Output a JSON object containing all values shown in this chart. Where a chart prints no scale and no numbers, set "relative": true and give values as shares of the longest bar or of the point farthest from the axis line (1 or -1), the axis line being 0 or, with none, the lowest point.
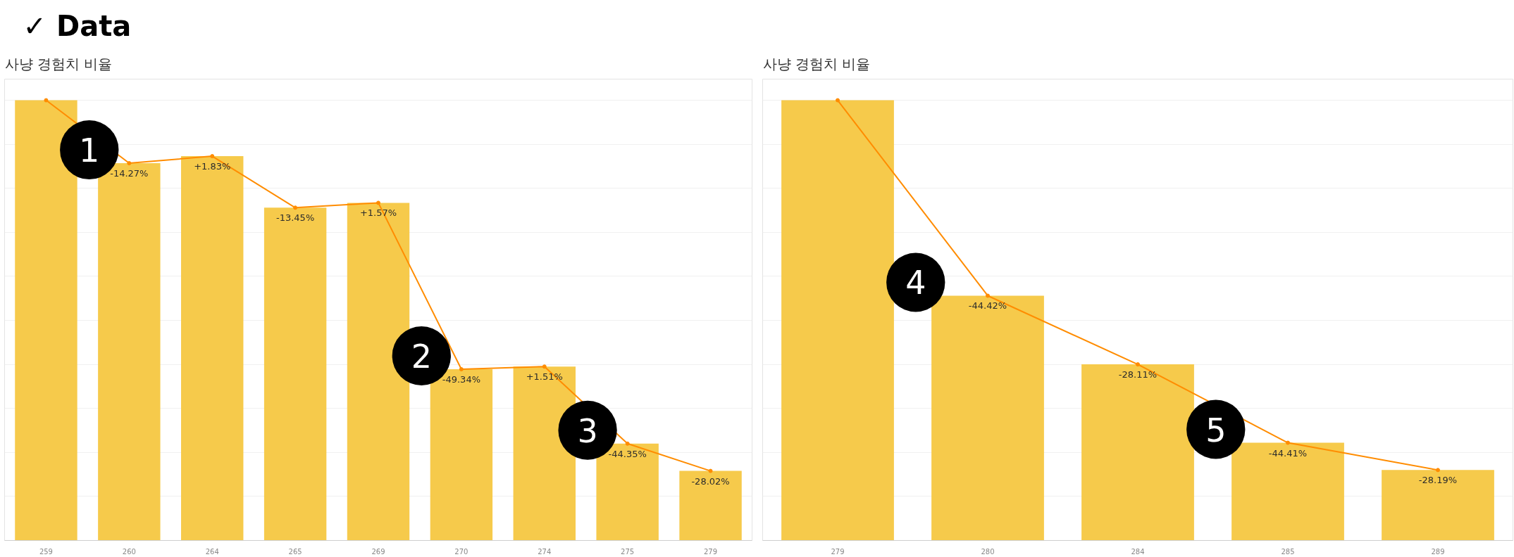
{
  "chart_data": [
    {
      "type": "bar",
      "title": "✓ Data",
      "subtitle": "사냥 경험치 비율",
      "categories": [
        "259",
        "260",
        "264",
        "265",
        "269",
        "270",
        "274",
        "275",
        "279"
      ],
      "relative": true,
      "grid": "y",
      "series": [
        {
          "color": "#f6ca4b",
          "values": [
            1,
            0.857,
            0.873,
            0.756,
            0.767,
            0.389,
            0.395,
            0.22,
            0.158
          ]
        },
        {
          "type": "line",
          "color": "#ff8c00",
          "marker": "circle",
          "values": [
            1,
            0.857,
            0.873,
            0.756,
            0.767,
            0.389,
            0.395,
            0.22,
            0.158
          ]
        }
      ],
      "annotations": [
        {
          "text": "-14.27%",
          "x": "260",
          "y": 0.857
        },
        {
          "text": "+1.83%",
          "x": "264",
          "y": 0.873
        },
        {
          "text": "-13.45%",
          "x": "265",
          "y": 0.756
        },
        {
          "text": "+1.57%",
          "x": "269",
          "y": 0.767
        },
        {
          "text": "-49.34%",
          "x": "270",
          "y": 0.389
        },
        {
          "text": "+1.51%",
          "x": "274",
          "y": 0.395
        },
        {
          "text": "-44.35%",
          "x": "275",
          "y": 0.22
        },
        {
          "text": "-28.02%",
          "x": "279",
          "y": 0.158
        },
        {
          "text": "1",
          "x": "260",
          "y": 0.857
        },
        {
          "text": "2",
          "x": "270",
          "y": 0.389
        },
        {
          "text": "3",
          "x": "275",
          "y": 0.22
        }
      ]
    },
    {
      "type": "bar",
      "subtitle": "사냥 경험치 비율",
      "categories": [
        "279",
        "280",
        "284",
        "285",
        "289"
      ],
      "relative": true,
      "grid": "y",
      "series": [
        {
          "color": "#f6ca4b",
          "values": [
            1,
            0.556,
            0.4,
            0.222,
            0.16
          ]
        },
        {
          "type": "line",
          "color": "#ff8c00",
          "marker": "circle",
          "values": [
            1,
            0.556,
            0.4,
            0.222,
            0.16
          ]
        }
      ],
      "annotations": [
        {
          "text": "-44.42%",
          "x": "280",
          "y": 0.556
        },
        {
          "text": "-28.11%",
          "x": "284",
          "y": 0.4
        },
        {
          "text": "-44.41%",
          "x": "285",
          "y": 0.222
        },
        {
          "text": "-28.19%",
          "x": "289",
          "y": 0.16
        },
        {
          "text": "4",
          "x": "280",
          "y": 0.556
        },
        {
          "text": "5",
          "x": "285",
          "y": 0.222
        }
      ]
    }
  ]
}
